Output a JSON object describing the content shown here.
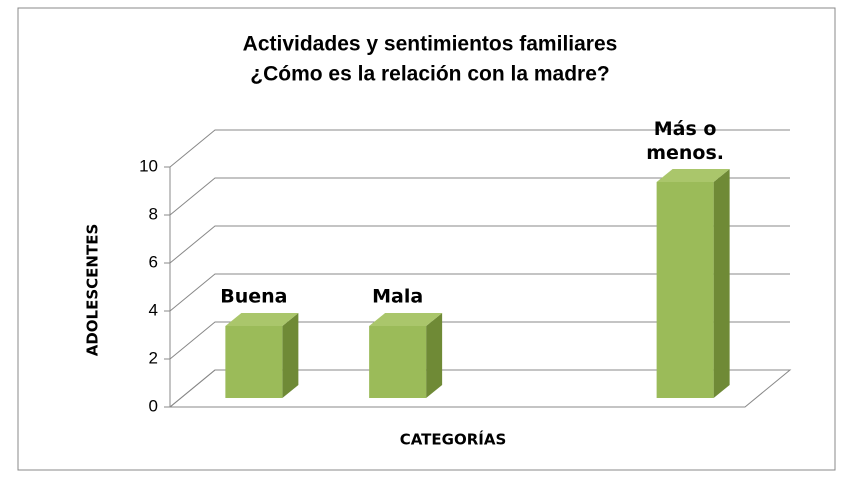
{
  "chart_data": {
    "type": "bar3d",
    "title": "Actividades y sentimientos familiares",
    "subtitle": "¿Cómo es la relación con la madre?",
    "x_label": "CATEGORÍAS",
    "y_label": "ADOLESCENTES",
    "categories": [
      "Buena",
      "Mala",
      null,
      "Más o menos."
    ],
    "values": [
      3,
      3,
      null,
      9
    ],
    "color": "#9bbb59",
    "ylim": [
      0,
      10
    ],
    "yticks": [
      0,
      2,
      4,
      6,
      8,
      10
    ],
    "grid": true
  }
}
